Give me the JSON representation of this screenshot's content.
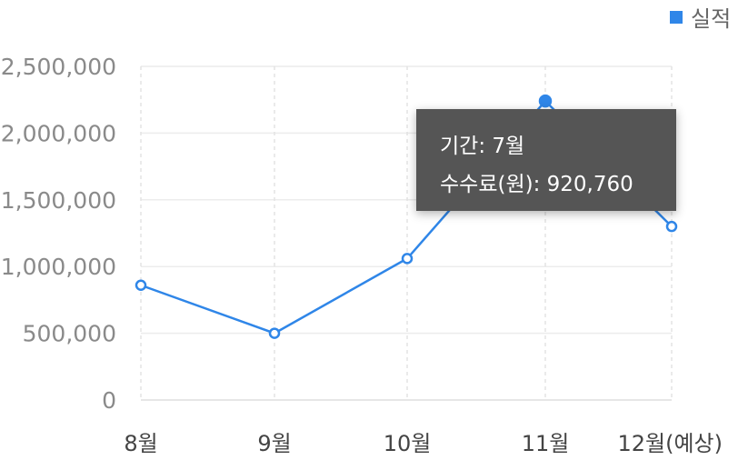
{
  "legend": {
    "label": "실적",
    "color": "#2f86e8"
  },
  "chart_data": {
    "type": "line",
    "categories": [
      "8월",
      "9월",
      "10월",
      "11월",
      "12월(예상)"
    ],
    "series": [
      {
        "name": "실적",
        "values": [
          860000,
          500000,
          1060000,
          2240000,
          1300000
        ],
        "color": "#2f86e8"
      }
    ],
    "y_ticks": [
      "0",
      "500,000",
      "1,000,000",
      "1,500,000",
      "2,000,000",
      "2,500,000"
    ],
    "ylim": [
      0,
      2500000
    ],
    "grid": true,
    "legend_position": "top-right"
  },
  "tooltip": {
    "line1": "기간: 7월",
    "line2": "수수료(원): 920,760"
  }
}
